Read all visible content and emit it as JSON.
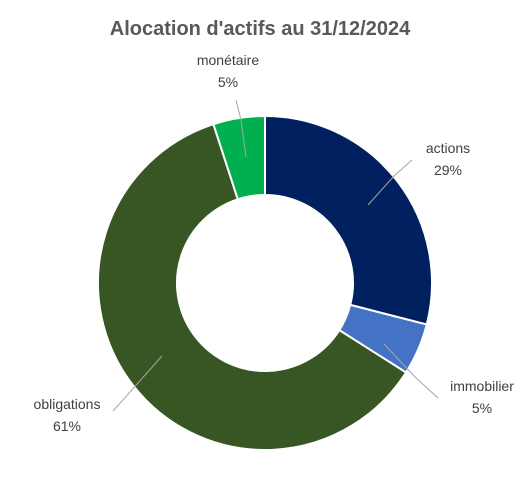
{
  "chart_data": {
    "type": "pie",
    "title": "Alocation d'actifs au 31/12/2024",
    "categories": [
      "actions",
      "immobilier",
      "obligations",
      "monétaire"
    ],
    "values": [
      29,
      5,
      61,
      5
    ],
    "value_labels": [
      "29%",
      "5%",
      "61%",
      "5%"
    ],
    "colors": [
      "#002060",
      "#4472C4",
      "#375623",
      "#00B050"
    ],
    "hole": true,
    "legend": "none"
  }
}
